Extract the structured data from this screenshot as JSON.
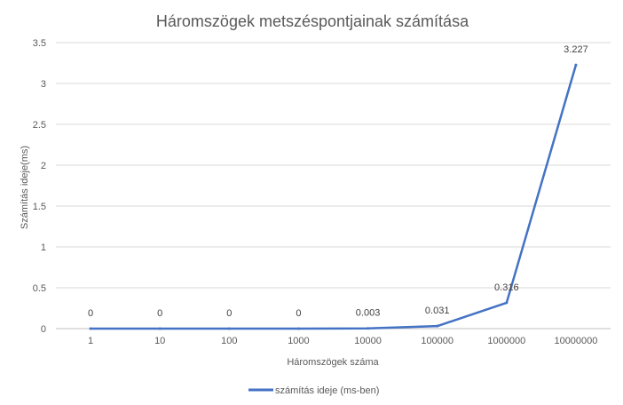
{
  "chart_data": {
    "type": "line",
    "title": "Háromszögek metszéspontjainak számítása",
    "xlabel": "Háromszögek száma",
    "ylabel": "Számítás ideje(ms)",
    "categories": [
      "1",
      "10",
      "100",
      "1000",
      "10000",
      "100000",
      "1000000",
      "10000000"
    ],
    "series": [
      {
        "name": "számítás ideje (ms-ben)",
        "values": [
          0,
          0,
          0,
          0,
          0.003,
          0.031,
          0.316,
          3.227
        ],
        "data_labels": [
          "0",
          "0",
          "0",
          "0",
          "0.003",
          "0.031",
          "0.316",
          "3.227"
        ],
        "color": "#4472C4"
      }
    ],
    "ylim": [
      0,
      3.5
    ],
    "yticks": [
      "0",
      "0.5",
      "1",
      "1.5",
      "2",
      "2.5",
      "3",
      "3.5"
    ],
    "grid": true,
    "legend_position": "bottom"
  }
}
